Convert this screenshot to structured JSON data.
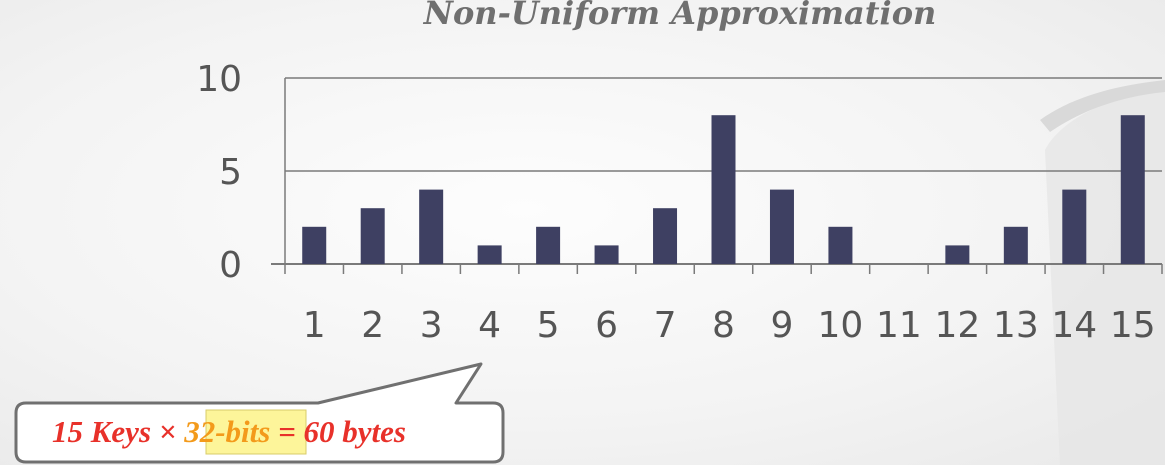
{
  "chart_data": {
    "type": "bar",
    "title": "Non-Uniform Approximation",
    "categories": [
      "1",
      "2",
      "3",
      "4",
      "5",
      "6",
      "7",
      "8",
      "9",
      "10",
      "11",
      "12",
      "13",
      "14",
      "15"
    ],
    "values": [
      2,
      3,
      4,
      1,
      2,
      1,
      3,
      8,
      4,
      2,
      0,
      1,
      2,
      4,
      8
    ],
    "ylim": [
      0,
      10
    ],
    "yticks": [
      "0",
      "5",
      "10"
    ],
    "grid": true,
    "bar_color": "#3e4062"
  },
  "callout": {
    "prefix": "15 Keys × ",
    "highlight": "32-bits",
    "suffix": " = 60 bytes",
    "highlight_bg": "#fdf59a"
  }
}
